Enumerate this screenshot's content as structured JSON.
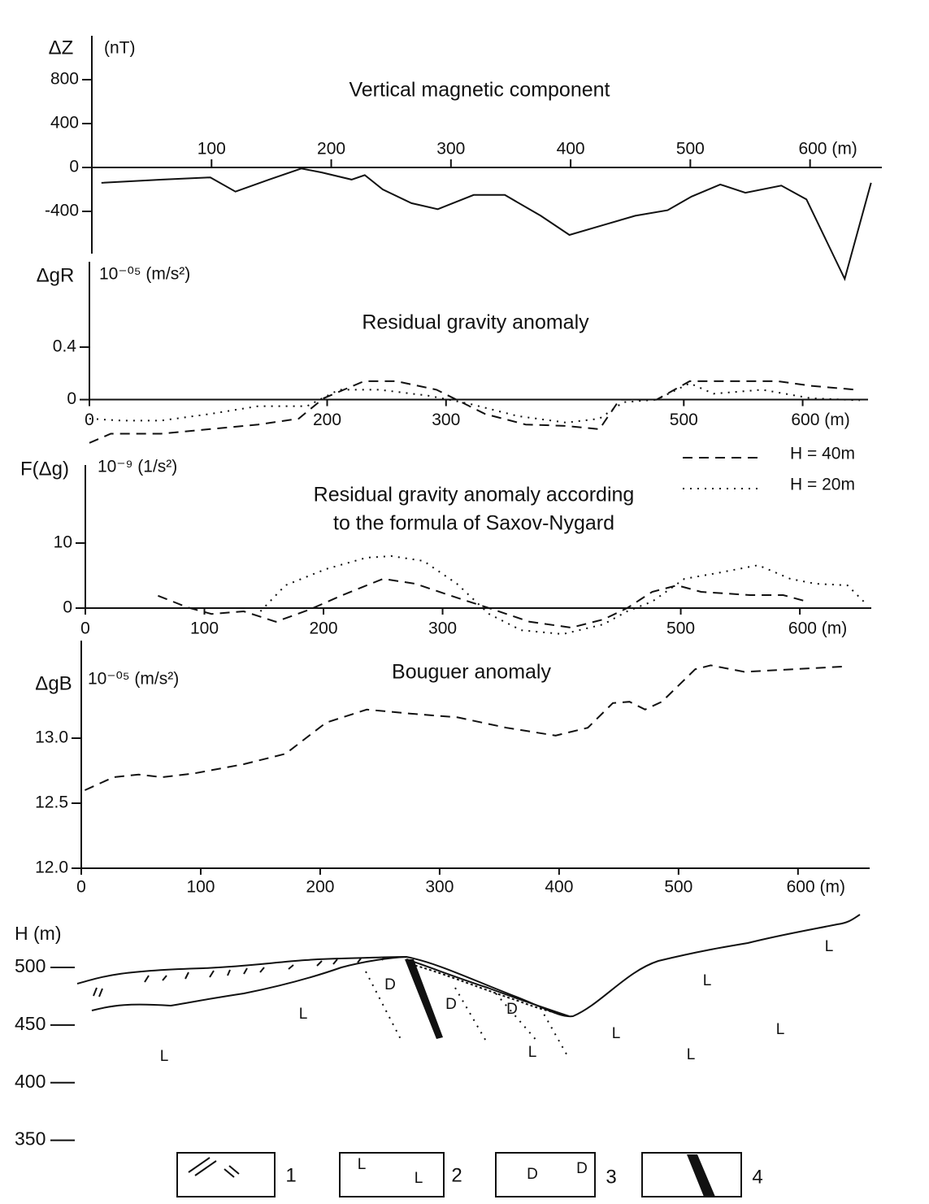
{
  "chart_data": [
    {
      "type": "line",
      "title": "Vertical magnetic component",
      "ylabel": "ΔZ",
      "unit": "(nT)",
      "xlim": [
        0,
        660
      ],
      "ylim": [
        -800,
        1200
      ],
      "xticks": [
        100,
        200,
        300,
        400,
        500,
        {
          "value": 600,
          "label": "600 (m)"
        }
      ],
      "yticks": [
        800,
        400,
        0,
        -400
      ],
      "series": [
        {
          "color": "#111111",
          "dash": "solid",
          "x": [
            8,
            59,
            99,
            120,
            148,
            175,
            192,
            217,
            228,
            243,
            267,
            289,
            319,
            345,
            375,
            399,
            427,
            454,
            481,
            501,
            525,
            546,
            576,
            597,
            629,
            651
          ],
          "values": [
            -140,
            -110,
            -90,
            -220,
            -110,
            -10,
            -45,
            -110,
            -70,
            -200,
            -325,
            -380,
            -250,
            -250,
            -440,
            -615,
            -525,
            -440,
            -390,
            -265,
            -155,
            -230,
            -165,
            -290,
            -1015,
            -140
          ]
        }
      ]
    },
    {
      "type": "line",
      "title": "Residual gravity anomaly",
      "ylabel": "ΔgR",
      "unit": "10⁻⁰⁵ (m/s²)",
      "xlim": [
        0,
        655
      ],
      "ylim": [
        -0.3,
        1.05
      ],
      "xticks": [
        0,
        200,
        300,
        500,
        {
          "value": 600,
          "label": "600 (m)"
        }
      ],
      "yticks": [
        0.4,
        0
      ],
      "legend": true,
      "series": [
        {
          "name": "H = 40m",
          "color": "#111111",
          "dash": "dashed",
          "x": [
            0,
            18,
            60,
            101,
            142,
            176,
            197,
            231,
            258,
            292,
            333,
            367,
            401,
            429,
            446,
            477,
            505,
            539,
            579,
            607,
            645
          ],
          "values": [
            -0.33,
            -0.26,
            -0.26,
            -0.225,
            -0.19,
            -0.145,
            0.01,
            0.14,
            0.14,
            0.075,
            -0.11,
            -0.19,
            -0.2,
            -0.225,
            0,
            0,
            0.14,
            0.14,
            0.14,
            0.105,
            0.075
          ]
        },
        {
          "name": "H = 20m",
          "color": "#111111",
          "dash": "dotted",
          "x": [
            0,
            27,
            60,
            101,
            142,
            183,
            210,
            244,
            285,
            319,
            360,
            401,
            429,
            449,
            477,
            505,
            525,
            566,
            607,
            648
          ],
          "values": [
            -0.145,
            -0.16,
            -0.16,
            -0.11,
            -0.05,
            -0.05,
            0.075,
            0.075,
            0.03,
            -0.03,
            -0.125,
            -0.175,
            -0.145,
            -0.02,
            0,
            0.125,
            0.045,
            0.075,
            0.01,
            -0.005
          ]
        }
      ]
    },
    {
      "type": "line",
      "title": [
        "Residual gravity anomaly according",
        "to the formula of Saxov-Nygard"
      ],
      "ylabel": "F(Δg)",
      "unit": "10⁻⁹ (1/s²)",
      "xlim": [
        0,
        660
      ],
      "ylim": [
        -4,
        22
      ],
      "xticks": [
        0,
        100,
        200,
        300,
        500,
        {
          "value": 600,
          "label": "600 (m)"
        }
      ],
      "yticks": [
        10,
        0
      ],
      "series": [
        {
          "color": "#111111",
          "dash": "dashed",
          "x": [
            61,
            86,
            106,
            133,
            160,
            188,
            216,
            250,
            277,
            312,
            339,
            373,
            408,
            435,
            455,
            476,
            497,
            517,
            558,
            586,
            606
          ],
          "values": [
            1.9,
            0.1,
            -0.9,
            -0.5,
            -2.1,
            -0.25,
            2,
            4.5,
            3.75,
            1.6,
            0,
            -2.1,
            -3,
            -1.75,
            0,
            2.5,
            3.5,
            2.5,
            2,
            2,
            1
          ]
        },
        {
          "color": "#111111",
          "dash": "dotted",
          "x": [
            147,
            168,
            202,
            236,
            257,
            284,
            312,
            339,
            366,
            401,
            435,
            455,
            476,
            503,
            531,
            565,
            592,
            613,
            640,
            657
          ],
          "values": [
            -0.5,
            3.5,
            6,
            7.75,
            8,
            7.25,
            3.75,
            -0.9,
            -3.4,
            -4,
            -2.5,
            -0.5,
            1,
            4.5,
            5.4,
            6.6,
            4.5,
            3.75,
            3.5,
            0.4
          ]
        }
      ]
    },
    {
      "type": "line",
      "title": "Bouguer anomaly",
      "ylabel": "ΔgB",
      "unit": "10⁻⁰⁵ (m/s²)",
      "xlim": [
        0,
        660
      ],
      "ylim": [
        12.0,
        13.75
      ],
      "xticks": [
        0,
        100,
        200,
        300,
        400,
        500,
        {
          "value": 600,
          "label": "600 (m)"
        }
      ],
      "yticks": [
        {
          "value": 13,
          "label": "13.0"
        },
        {
          "value": 12.5,
          "label": "12.5"
        },
        {
          "value": 12,
          "label": "12.0"
        }
      ],
      "series": [
        {
          "color": "#111111",
          "dash": "dashed",
          "x": [
            3,
            27,
            48,
            68,
            95,
            136,
            171,
            205,
            239,
            274,
            315,
            356,
            397,
            424,
            445,
            459,
            472,
            486,
            514,
            527,
            555,
            596,
            637
          ],
          "values": [
            12.6,
            12.7,
            12.72,
            12.7,
            12.73,
            12.8,
            12.88,
            13.12,
            13.22,
            13.19,
            13.16,
            13.08,
            13.02,
            13.08,
            13.27,
            13.28,
            13.22,
            13.28,
            13.53,
            13.56,
            13.51,
            13.53,
            13.55
          ]
        }
      ]
    },
    {
      "type": "section",
      "ylabel": "H (m)",
      "ylim": [
        330,
        520
      ],
      "yticks": [
        500,
        450,
        400,
        350
      ],
      "rock_labels": [
        "L",
        "L",
        "L",
        "L",
        "L",
        "L",
        "L",
        "L",
        "D",
        "D",
        "D"
      ],
      "legend_symbols": [
        "L",
        "L",
        "D",
        "D"
      ],
      "legend_numbers": [
        "1",
        "2",
        "3",
        "4"
      ]
    }
  ]
}
